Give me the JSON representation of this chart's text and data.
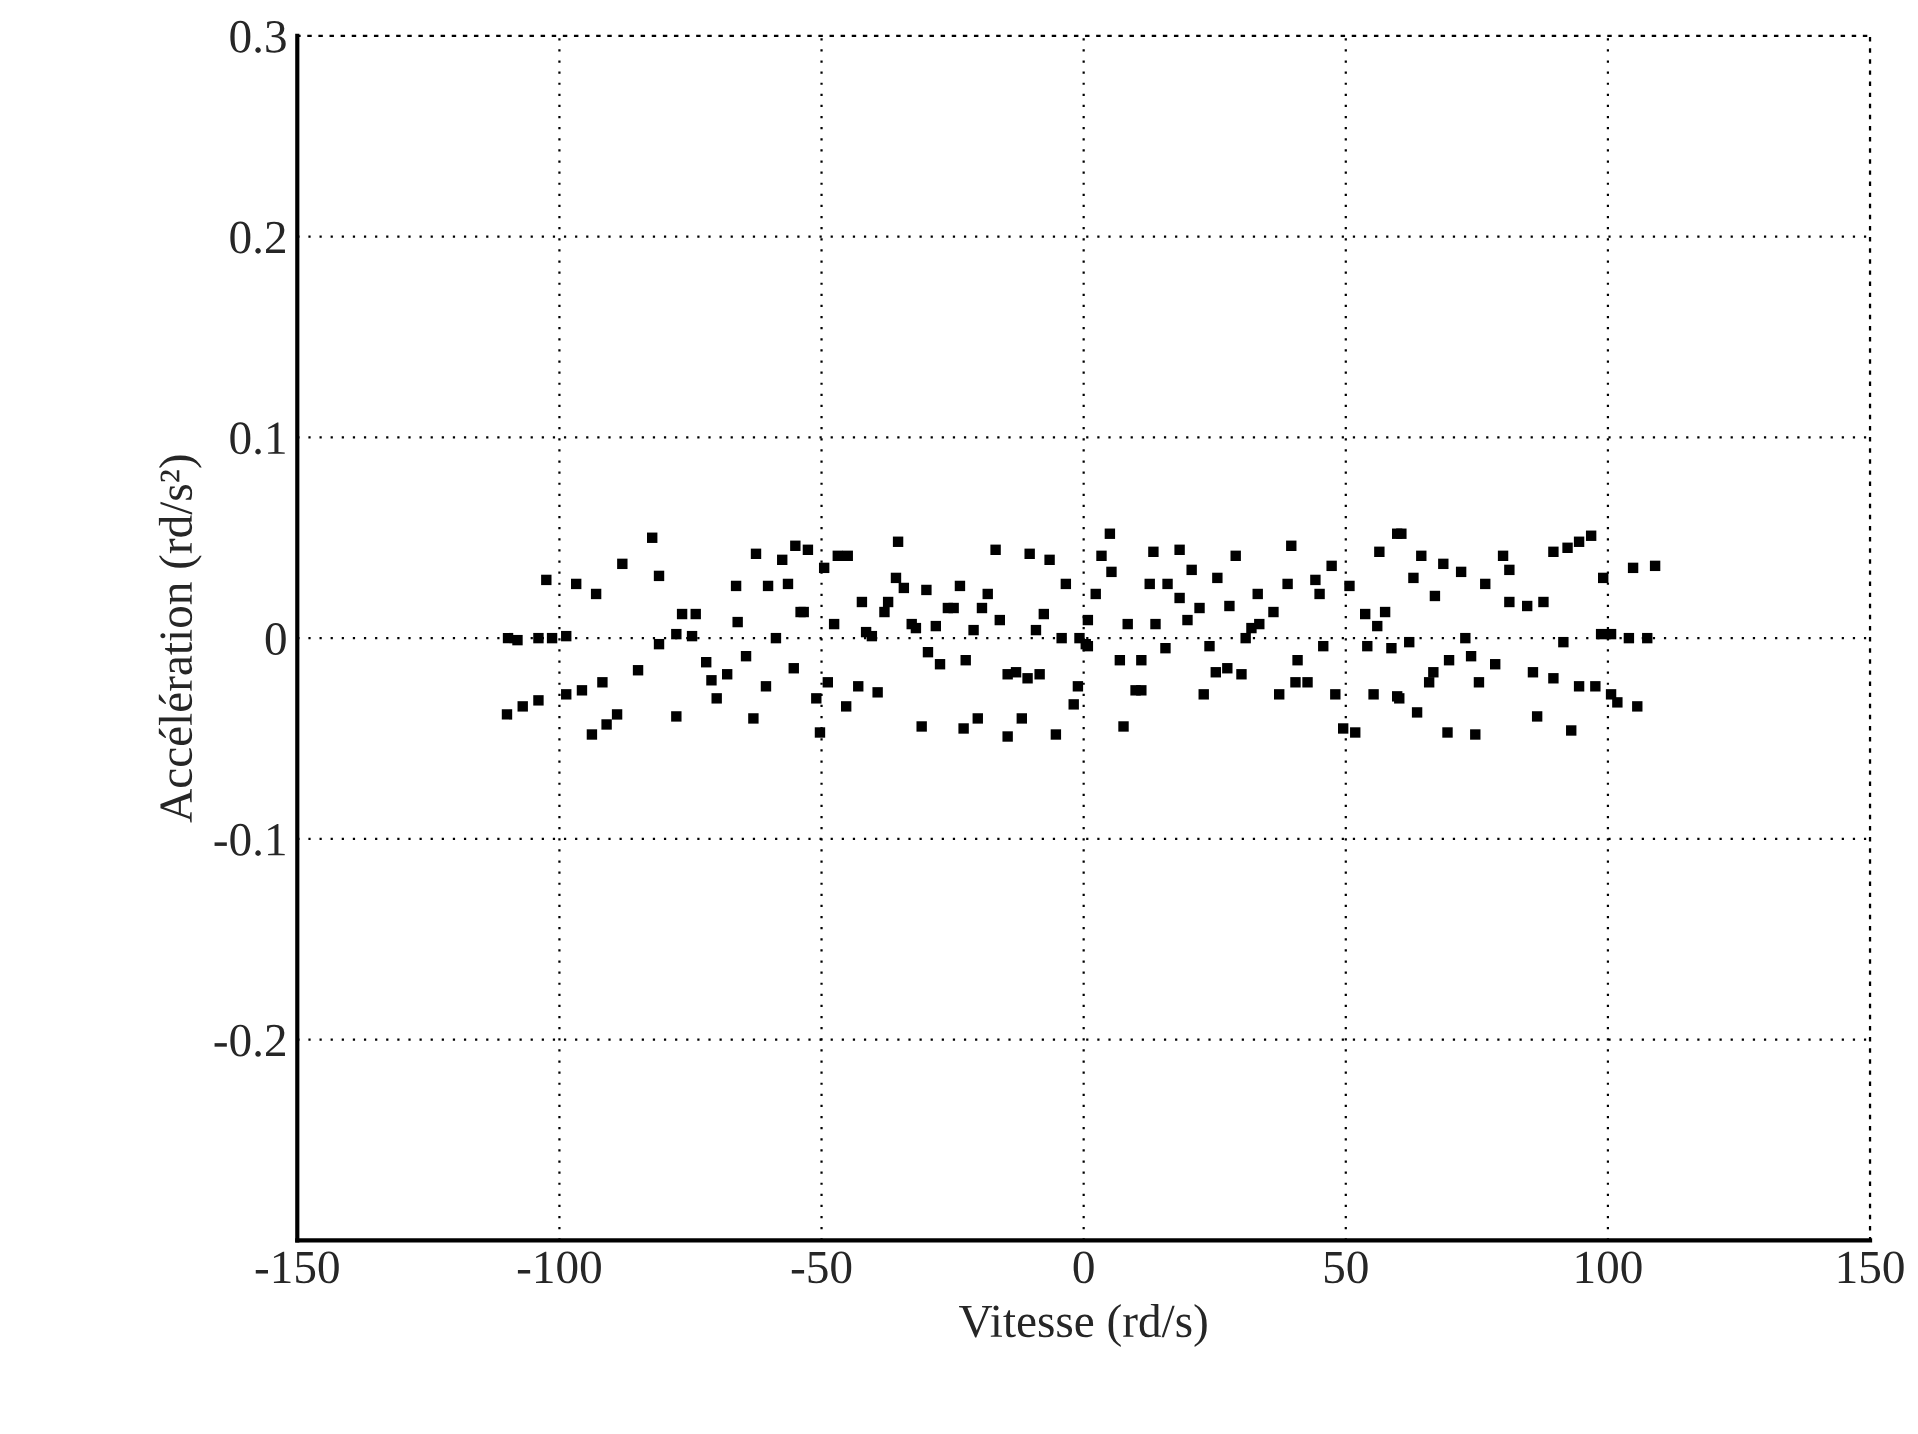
{
  "chart_data": {
    "type": "scatter",
    "xlabel": "Vitesse (rd/s)",
    "ylabel": "Accélération (rd/s²)",
    "xlim": [
      -150,
      150
    ],
    "xticks": [
      -150,
      -100,
      -50,
      0,
      50,
      100,
      150
    ],
    "ylim": [
      -0.3,
      0.3
    ],
    "yticks": [
      {
        "value": -0.3,
        "label": null
      },
      -0.2,
      -0.1,
      0,
      0.1,
      0.2,
      0.3
    ],
    "grid": true,
    "marker": "square",
    "series": [
      {
        "color": "#000000",
        "x": [
          -82.3,
          -88,
          -102.5,
          -96.8,
          -93,
          -81,
          -76.6,
          -74,
          -77.7,
          -74.7,
          -81,
          -109.8,
          -108,
          -104,
          -101.4,
          -98.7,
          -85,
          -91.8,
          -95.7,
          -98.7,
          -104,
          -107,
          -110,
          -89,
          -91,
          -93.8,
          -77.7,
          -72,
          -71,
          -68,
          -70,
          -64.4,
          -60.6,
          -63,
          -66.3,
          -62.5,
          -60.2,
          -57.5,
          -56.4,
          -55,
          -66,
          -58.7,
          -55.3,
          -54,
          -52.6,
          -46.9,
          -45,
          -35.4,
          -49.5,
          -53.4,
          -47.6,
          -48.8,
          -51,
          -45.3,
          -50.3,
          -43,
          -39.3,
          -42.3,
          -37.3,
          -38,
          -35.8,
          -34.3,
          -41.5,
          -40.4,
          -32.8,
          -32,
          -30,
          -28.2,
          -29.7,
          -27.4,
          -30.9,
          -25.9,
          -24.8,
          -23.6,
          -22.5,
          -22.9,
          -20.2,
          -21,
          -19.4,
          -18.3,
          -16.8,
          -16,
          -14.5,
          -12.9,
          -10.7,
          -8.4,
          -14.5,
          -11.8,
          -10.3,
          -6.5,
          -9.1,
          -7.6,
          -4.2,
          -3.4,
          -5.3,
          -1.1,
          -1.9,
          -0.8,
          0.8,
          0.8,
          2.3,
          5,
          3.4,
          5.3,
          0.4,
          8.4,
          6.9,
          11,
          7.6,
          13.3,
          18.3,
          12.6,
          16,
          18.3,
          13.7,
          15.6,
          9.9,
          11,
          20.6,
          19.8,
          22.1,
          24,
          25.5,
          29,
          27.8,
          25.2,
          27.4,
          30.1,
          22.9,
          33.2,
          30.9,
          32,
          33.5,
          36.2,
          37.3,
          38.9,
          39.6,
          40.8,
          40.4,
          42.7,
          44.2,
          45,
          47.3,
          45.7,
          48,
          49.5,
          51.8,
          50.7,
          53.7,
          57.5,
          56.4,
          59.8,
          56,
          54.1,
          58.7,
          55.3,
          59.8,
          60.6,
          64.4,
          62.9,
          68.6,
          72,
          67,
          76.6,
          80,
          81.2,
          81.2,
          84.6,
          87.7,
          89.6,
          92.3,
          94.5,
          96.8,
          99.1,
          104.8,
          109,
          62.1,
          72.8,
          91.5,
          98.7,
          100.6,
          104,
          107.5,
          69.7,
          73.9,
          78.5,
          66.7,
          65.9,
          75.4,
          85.7,
          89.6,
          94.5,
          97.6,
          100.6,
          101.8,
          105.6,
          60.2,
          63.6,
          69.4,
          74.7,
          86.5,
          93
        ],
        "values": [
          0.05,
          0.037,
          0.029,
          0.027,
          0.022,
          0.031,
          0.012,
          0.012,
          0.002,
          0.001,
          -0.003,
          0,
          -0.001,
          0,
          0,
          0.001,
          -0.016,
          -0.022,
          -0.026,
          -0.028,
          -0.031,
          -0.034,
          -0.038,
          -0.038,
          -0.043,
          -0.048,
          -0.039,
          -0.012,
          -0.021,
          -0.018,
          -0.03,
          -0.009,
          -0.024,
          -0.04,
          0.026,
          0.042,
          0.026,
          0.039,
          0.027,
          0.046,
          0.008,
          0,
          -0.015,
          0.013,
          0.044,
          0.041,
          0.041,
          0.048,
          0.035,
          0.013,
          0.007,
          -0.022,
          -0.03,
          -0.034,
          -0.047,
          -0.024,
          -0.027,
          0.018,
          0.018,
          0.013,
          0.03,
          0.025,
          0.003,
          0.001,
          0.007,
          0.005,
          0.024,
          0.006,
          -0.007,
          -0.013,
          -0.044,
          0.015,
          0.015,
          0.026,
          -0.011,
          -0.045,
          -0.04,
          0.004,
          0.015,
          0.022,
          0.044,
          0.009,
          -0.018,
          -0.017,
          -0.02,
          -0.018,
          -0.049,
          -0.04,
          0.042,
          0.039,
          0.004,
          0.012,
          0,
          0.027,
          -0.048,
          -0.024,
          -0.033,
          0,
          0.009,
          -0.004,
          0.022,
          0.052,
          0.041,
          0.033,
          -0.003,
          0.007,
          -0.011,
          -0.011,
          -0.044,
          0.043,
          0.044,
          0.027,
          0.027,
          0.02,
          0.007,
          -0.005,
          -0.026,
          -0.026,
          0.034,
          0.009,
          0.015,
          -0.004,
          0.03,
          0.041,
          0.016,
          -0.017,
          -0.015,
          -0.018,
          -0.028,
          0.022,
          0,
          0.005,
          0.007,
          0.013,
          -0.028,
          0.027,
          0.046,
          -0.011,
          -0.022,
          -0.022,
          0.029,
          0.022,
          0.036,
          -0.004,
          -0.028,
          -0.045,
          -0.047,
          0.026,
          0.012,
          0.013,
          0.043,
          0.052,
          0.006,
          -0.004,
          -0.005,
          -0.028,
          -0.029,
          0.052,
          0.041,
          0.03,
          0.037,
          0.033,
          0.021,
          0.027,
          0.041,
          0.034,
          0.018,
          0.016,
          0.018,
          0.043,
          0.045,
          0.048,
          0.051,
          0.03,
          0.035,
          0.036,
          -0.002,
          0,
          -0.002,
          0.002,
          0.002,
          0,
          0,
          -0.011,
          -0.009,
          -0.013,
          -0.017,
          -0.022,
          -0.022,
          -0.017,
          -0.02,
          -0.024,
          -0.024,
          -0.028,
          -0.032,
          -0.034,
          -0.03,
          -0.037,
          -0.047,
          -0.048,
          -0.039,
          -0.046
        ]
      }
    ]
  }
}
